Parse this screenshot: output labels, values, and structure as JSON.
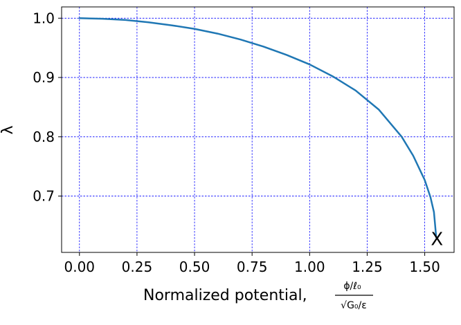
{
  "chart_data": {
    "type": "line",
    "title": "",
    "xlabel_prefix": "Normalized potential,",
    "xlabel_fraction": {
      "numerator": "ϕ/ℓ₀",
      "denominator": "√G₀/ε"
    },
    "ylabel": "λ",
    "xlim": [
      -0.0775,
      1.6275
    ],
    "ylim": [
      0.605,
      1.019
    ],
    "x_ticks": [
      0.0,
      0.25,
      0.5,
      0.75,
      1.0,
      1.25,
      1.5
    ],
    "x_tick_labels": [
      "0.00",
      "0.25",
      "0.50",
      "0.75",
      "1.00",
      "1.25",
      "1.50"
    ],
    "y_ticks": [
      0.7,
      0.8,
      0.9,
      1.0
    ],
    "y_tick_labels": [
      "0.7",
      "0.8",
      "0.9",
      "1.0"
    ],
    "grid": true,
    "series": [
      {
        "name": "lambda",
        "color": "#1f77b4",
        "x": [
          0.0,
          0.1,
          0.2,
          0.3,
          0.4,
          0.5,
          0.6,
          0.7,
          0.8,
          0.9,
          1.0,
          1.1,
          1.2,
          1.3,
          1.4,
          1.45,
          1.5,
          1.525,
          1.54,
          1.55
        ],
        "y": [
          1.0,
          0.999,
          0.997,
          0.993,
          0.988,
          0.982,
          0.974,
          0.964,
          0.952,
          0.938,
          0.922,
          0.902,
          0.878,
          0.846,
          0.8,
          0.768,
          0.727,
          0.698,
          0.673,
          0.63
        ]
      }
    ],
    "annotations": [
      {
        "text": "X",
        "x": 1.55,
        "y": 0.63
      }
    ]
  },
  "colors": {
    "grid": "#0000ff",
    "axis": "#000000",
    "line": "#1f77b4",
    "background": "#ffffff"
  }
}
